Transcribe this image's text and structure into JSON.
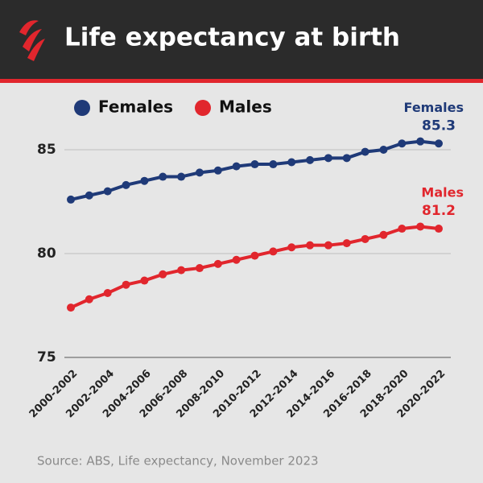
{
  "chart_data": {
    "type": "line",
    "title": "Life expectancy at birth",
    "source": "Source: ABS, Life expectancy, November 2023",
    "categories": [
      "2000-2002",
      null,
      "2002-2004",
      null,
      "2004-2006",
      null,
      "2006-2008",
      null,
      "2008-2010",
      null,
      "2010-2012",
      null,
      "2012-2014",
      null,
      "2014-2016",
      null,
      "2016-2018",
      null,
      "2018-2020",
      null,
      "2020-2022"
    ],
    "series": [
      {
        "name": "Females",
        "color": "#1f3a78",
        "values": [
          82.6,
          82.8,
          83.0,
          83.3,
          83.5,
          83.7,
          83.7,
          83.9,
          84.0,
          84.2,
          84.3,
          84.3,
          84.4,
          84.5,
          84.6,
          84.6,
          84.9,
          85.0,
          85.3,
          85.4,
          85.3
        ]
      },
      {
        "name": "Males",
        "color": "#e1262d",
        "values": [
          77.4,
          77.8,
          78.1,
          78.5,
          78.7,
          79.0,
          79.2,
          79.3,
          79.5,
          79.7,
          79.9,
          80.1,
          80.3,
          80.4,
          80.4,
          80.5,
          80.7,
          80.9,
          81.2,
          81.3,
          81.2
        ]
      }
    ],
    "ylim": [
      75,
      87.5
    ],
    "yticks": [
      75,
      80,
      85
    ],
    "grid": true,
    "legend": "top-left"
  }
}
